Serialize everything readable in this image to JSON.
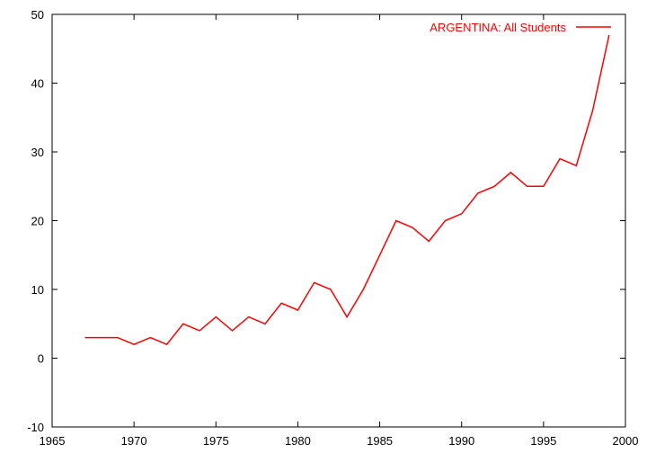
{
  "chart_data": {
    "type": "line",
    "title": "",
    "xlabel": "",
    "ylabel": "",
    "xlim": [
      1965,
      2000
    ],
    "ylim": [
      -10,
      50
    ],
    "xticks": [
      1965,
      1970,
      1975,
      1980,
      1985,
      1990,
      1995,
      2000
    ],
    "yticks": [
      -10,
      0,
      10,
      20,
      30,
      40,
      50
    ],
    "grid": false,
    "legend_position": "top-right",
    "series": [
      {
        "name": "ARGENTINA: All Students",
        "color": "#ff0000",
        "x": [
          1967,
          1968,
          1969,
          1970,
          1971,
          1972,
          1973,
          1974,
          1975,
          1976,
          1977,
          1978,
          1979,
          1980,
          1981,
          1982,
          1983,
          1984,
          1985,
          1986,
          1987,
          1988,
          1989,
          1990,
          1991,
          1992,
          1993,
          1994,
          1995,
          1996,
          1997,
          1998,
          1999
        ],
        "y": [
          3,
          3,
          3,
          2,
          3,
          2,
          5,
          4,
          6,
          4,
          6,
          5,
          8,
          7,
          11,
          10,
          6,
          10,
          15,
          20,
          19,
          17,
          20,
          21,
          24,
          25,
          27,
          25,
          25,
          29,
          28,
          36,
          47
        ]
      }
    ]
  }
}
